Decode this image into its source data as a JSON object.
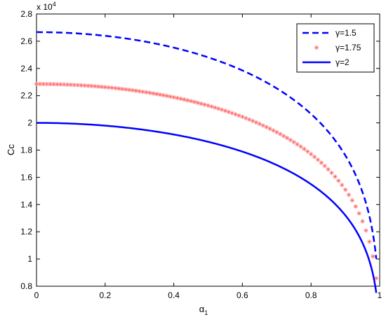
{
  "chart_data": {
    "type": "line",
    "xlabel": "α",
    "xlabel_sub": "1",
    "ylabel": "Cc",
    "y_multiplier_prefix": "x 10",
    "y_multiplier_exp": "4",
    "xlim": [
      0,
      1
    ],
    "ylim": [
      8000,
      28000
    ],
    "xticks": [
      0,
      0.2,
      0.4,
      0.6,
      0.8,
      1
    ],
    "xtick_labels": [
      "0",
      "0.2",
      "0.4",
      "0.6",
      "0.8",
      "1"
    ],
    "yticks": [
      8000,
      10000,
      12000,
      14000,
      16000,
      18000,
      20000,
      22000,
      24000,
      26000,
      28000
    ],
    "ytick_labels": [
      "0.8",
      "1",
      "1.2",
      "1.4",
      "1.6",
      "1.8",
      "2",
      "2.2",
      "2.4",
      "2.6",
      "2.8"
    ],
    "grid": false,
    "legend_position": "top-right",
    "series": [
      {
        "name": "γ=1.5",
        "style": "dashed",
        "color": "#0000ff",
        "c0": 26667,
        "x": [
          0,
          0.1,
          0.2,
          0.3,
          0.4,
          0.5,
          0.6,
          0.7,
          0.8,
          0.85,
          0.9,
          0.93,
          0.95,
          0.97,
          0.98,
          0.99
        ],
        "y": [
          26667,
          26420,
          26120,
          25760,
          25340,
          24840,
          24200,
          23320,
          21920,
          20900,
          19340,
          17980,
          16690,
          14980,
          13610,
          11500
        ]
      },
      {
        "name": "γ=1.75",
        "style": "markers",
        "marker": "*",
        "color": "#ff6666",
        "c0": 22857,
        "x": [
          0,
          0.1,
          0.2,
          0.3,
          0.4,
          0.5,
          0.6,
          0.7,
          0.8,
          0.85,
          0.9,
          0.93,
          0.95,
          0.97,
          0.98,
          0.99
        ],
        "y": [
          22857,
          22646,
          22389,
          22080,
          21720,
          21290,
          20740,
          19990,
          18790,
          17910,
          16570,
          15410,
          14300,
          12840,
          11660,
          9860
        ]
      },
      {
        "name": "γ=2",
        "style": "solid",
        "color": "#0000ff",
        "c0": 20000,
        "x": [
          0,
          0.1,
          0.2,
          0.3,
          0.4,
          0.5,
          0.6,
          0.7,
          0.8,
          0.85,
          0.9,
          0.93,
          0.95,
          0.97,
          0.98,
          0.99
        ],
        "y": [
          20000,
          19815,
          19590,
          19320,
          19005,
          18630,
          18150,
          17490,
          16440,
          15675,
          14500,
          13485,
          12515,
          11235,
          10205,
          8625
        ]
      }
    ]
  }
}
